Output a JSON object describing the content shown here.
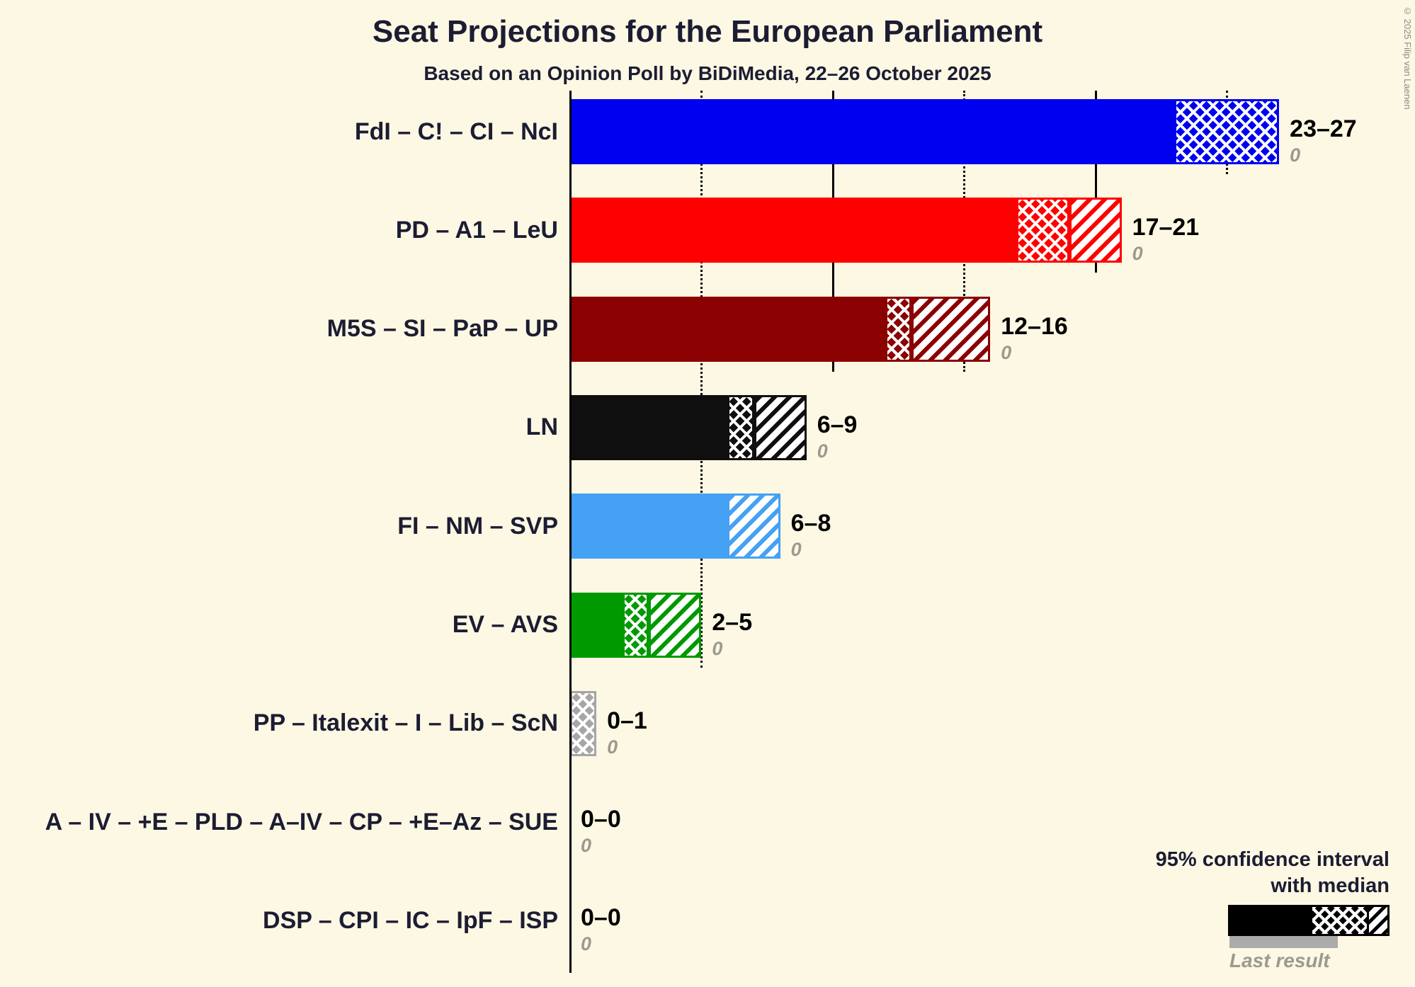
{
  "chart_data": {
    "type": "bar",
    "orientation": "horizontal",
    "title": "Seat Projections for the European Parliament",
    "subtitle": "Based on an Opinion Poll by BiDiMedia, 22–26 October 2025",
    "unit": "seats",
    "x_axis": {
      "min": 0,
      "max": 27,
      "gridlines": [
        {
          "value": 5,
          "style": "dotted"
        },
        {
          "value": 10,
          "style": "solid"
        },
        {
          "value": 15,
          "style": "dotted"
        },
        {
          "value": 20,
          "style": "solid"
        },
        {
          "value": 25,
          "style": "dotted"
        }
      ]
    },
    "series": [
      {
        "label": "FdI – C! – CI – NcI",
        "color": "#0000F0",
        "ci_low": 23,
        "median": 27,
        "ci_high": 27,
        "range_label": "23–27",
        "last_result": 0
      },
      {
        "label": "PD – A1 – LeU",
        "color": "#FF0000",
        "ci_low": 17,
        "median": 19,
        "ci_high": 21,
        "range_label": "17–21",
        "last_result": 0
      },
      {
        "label": "M5S – SI – PaP – UP",
        "color": "#8B0000",
        "ci_low": 12,
        "median": 13,
        "ci_high": 16,
        "range_label": "12–16",
        "last_result": 0
      },
      {
        "label": "LN",
        "color": "#0F0F0F",
        "ci_low": 6,
        "median": 7,
        "ci_high": 9,
        "range_label": "6–9",
        "last_result": 0
      },
      {
        "label": "FI – NM – SVP",
        "color": "#45A1F3",
        "ci_low": 6,
        "median": 6,
        "ci_high": 8,
        "range_label": "6–8",
        "last_result": 0
      },
      {
        "label": "EV – AVS",
        "color": "#009900",
        "ci_low": 2,
        "median": 3,
        "ci_high": 5,
        "range_label": "2–5",
        "last_result": 0
      },
      {
        "label": "PP – Italexit – I – Lib – ScN",
        "color": "#A6A6A6",
        "ci_low": 0,
        "median": 1,
        "ci_high": 1,
        "range_label": "0–1",
        "last_result": 0
      },
      {
        "label": "A – IV – +E – PLD – A–IV – CP – +E–Az – SUE",
        "color": "#A6A6A6",
        "ci_low": 0,
        "median": 0,
        "ci_high": 0,
        "range_label": "0–0",
        "last_result": 0
      },
      {
        "label": "DSP – CPI – IC – IpF – ISP",
        "color": "#A6A6A6",
        "ci_low": 0,
        "median": 0,
        "ci_high": 0,
        "range_label": "0–0",
        "last_result": 0
      }
    ],
    "legend": {
      "line1": "95% confidence interval",
      "line2": "with median",
      "last_result_label": "Last result"
    },
    "copyright": "© 2025 Filip van Laenen"
  }
}
